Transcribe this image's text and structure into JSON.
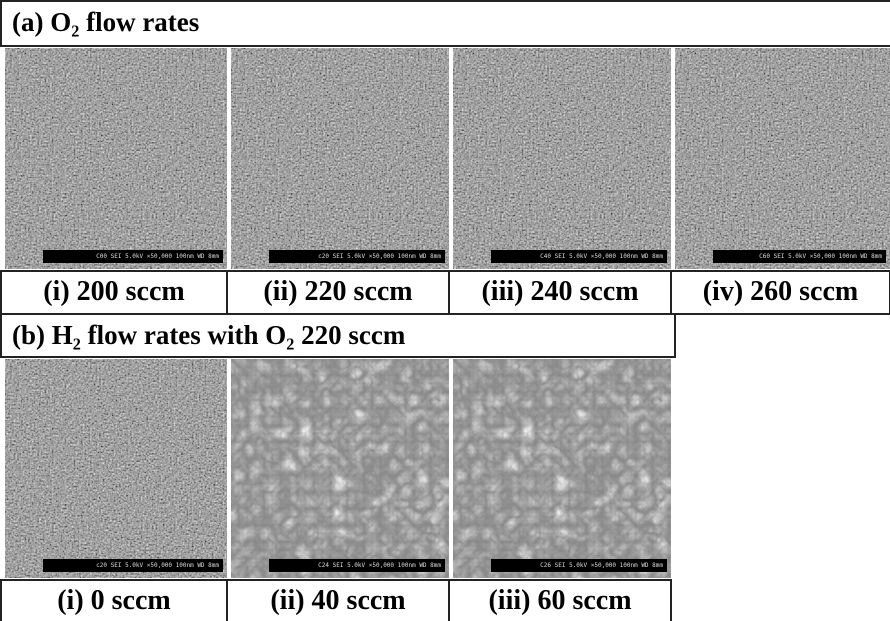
{
  "panels": [
    {
      "title": "(a) O₂ flow rates",
      "items": [
        {
          "label": "(i) 200 sccm",
          "image_info": "C00 SEI 5.0kV ×50,000 100nm WD 8mm"
        },
        {
          "label": "(ii) 220 sccm",
          "image_info": "c20 SEI 5.0kV ×50,000 100nm WD 8mm"
        },
        {
          "label": "(iii) 240 sccm",
          "image_info": "C40 SEI 5.0kV ×50,000 100nm WD 8mm"
        },
        {
          "label": "(iv) 260 sccm",
          "image_info": "C60 SEI 5.0kV ×50,000 100nm WD 8mm"
        }
      ]
    },
    {
      "title": "(b) H₂ flow rates with O₂ 220 sccm",
      "items": [
        {
          "label": "(i) 0 sccm",
          "image_info": "c20 SEI 5.0kV ×50,000 100nm WD 8mm"
        },
        {
          "label": "(ii) 40 sccm",
          "image_info": "C24 SEI 5.0kV ×50,000 100nm WD 8mm"
        },
        {
          "label": "(iii) 60 sccm",
          "image_info": "C26 SEI 5.0kV ×50,000 100nm WD 8mm"
        }
      ]
    }
  ]
}
